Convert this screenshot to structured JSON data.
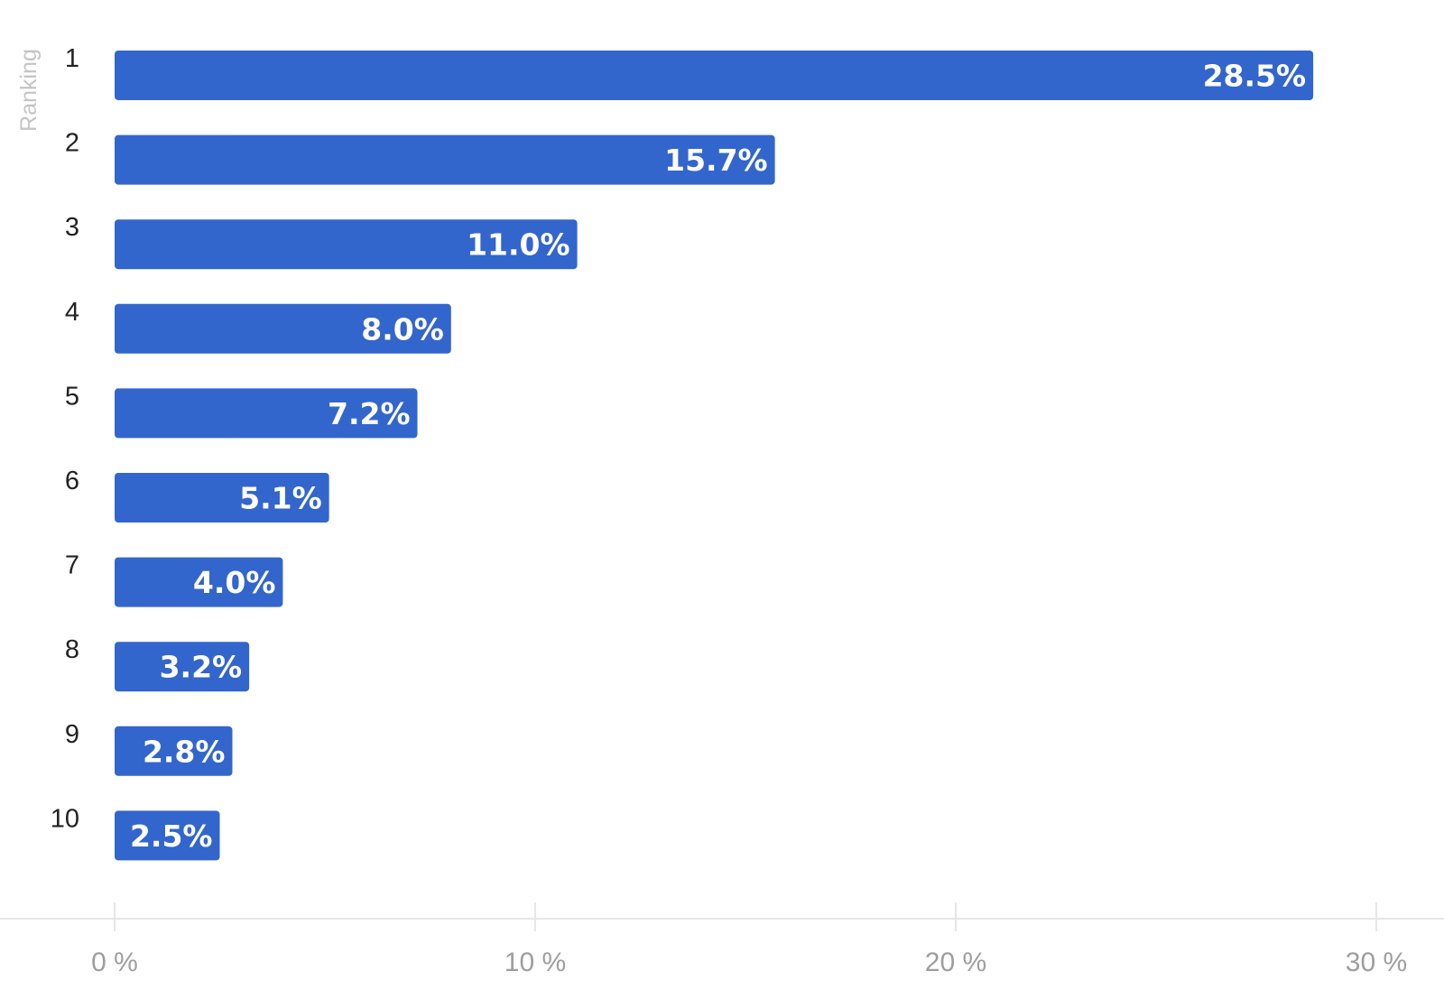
{
  "chart_data": {
    "type": "bar",
    "orientation": "horizontal",
    "categories": [
      "1",
      "2",
      "3",
      "4",
      "5",
      "6",
      "7",
      "8",
      "9",
      "10"
    ],
    "values": [
      28.5,
      15.7,
      11.0,
      8.0,
      7.2,
      5.1,
      4.0,
      3.2,
      2.8,
      2.5
    ],
    "value_labels": [
      "28.5%",
      "15.7%",
      "11.0%",
      "8.0%",
      "7.2%",
      "5.1%",
      "4.0%",
      "3.2%",
      "2.8%",
      "2.5%"
    ],
    "title": "",
    "xlabel": "",
    "ylabel": "Ranking",
    "xlim": [
      0,
      30
    ],
    "x_ticks": [
      0,
      10,
      20,
      30
    ],
    "x_tick_labels": [
      "0 %",
      "10 %",
      "20 %",
      "30 %"
    ],
    "grid": false,
    "legend": "none",
    "colors": {
      "bar": "#3366cc",
      "value_label": "#ffffff",
      "category_label": "#222222",
      "tick_label": "#9e9e9e",
      "axis_title": "#c4c4c4",
      "axis_line": "#e6e6e6"
    }
  }
}
